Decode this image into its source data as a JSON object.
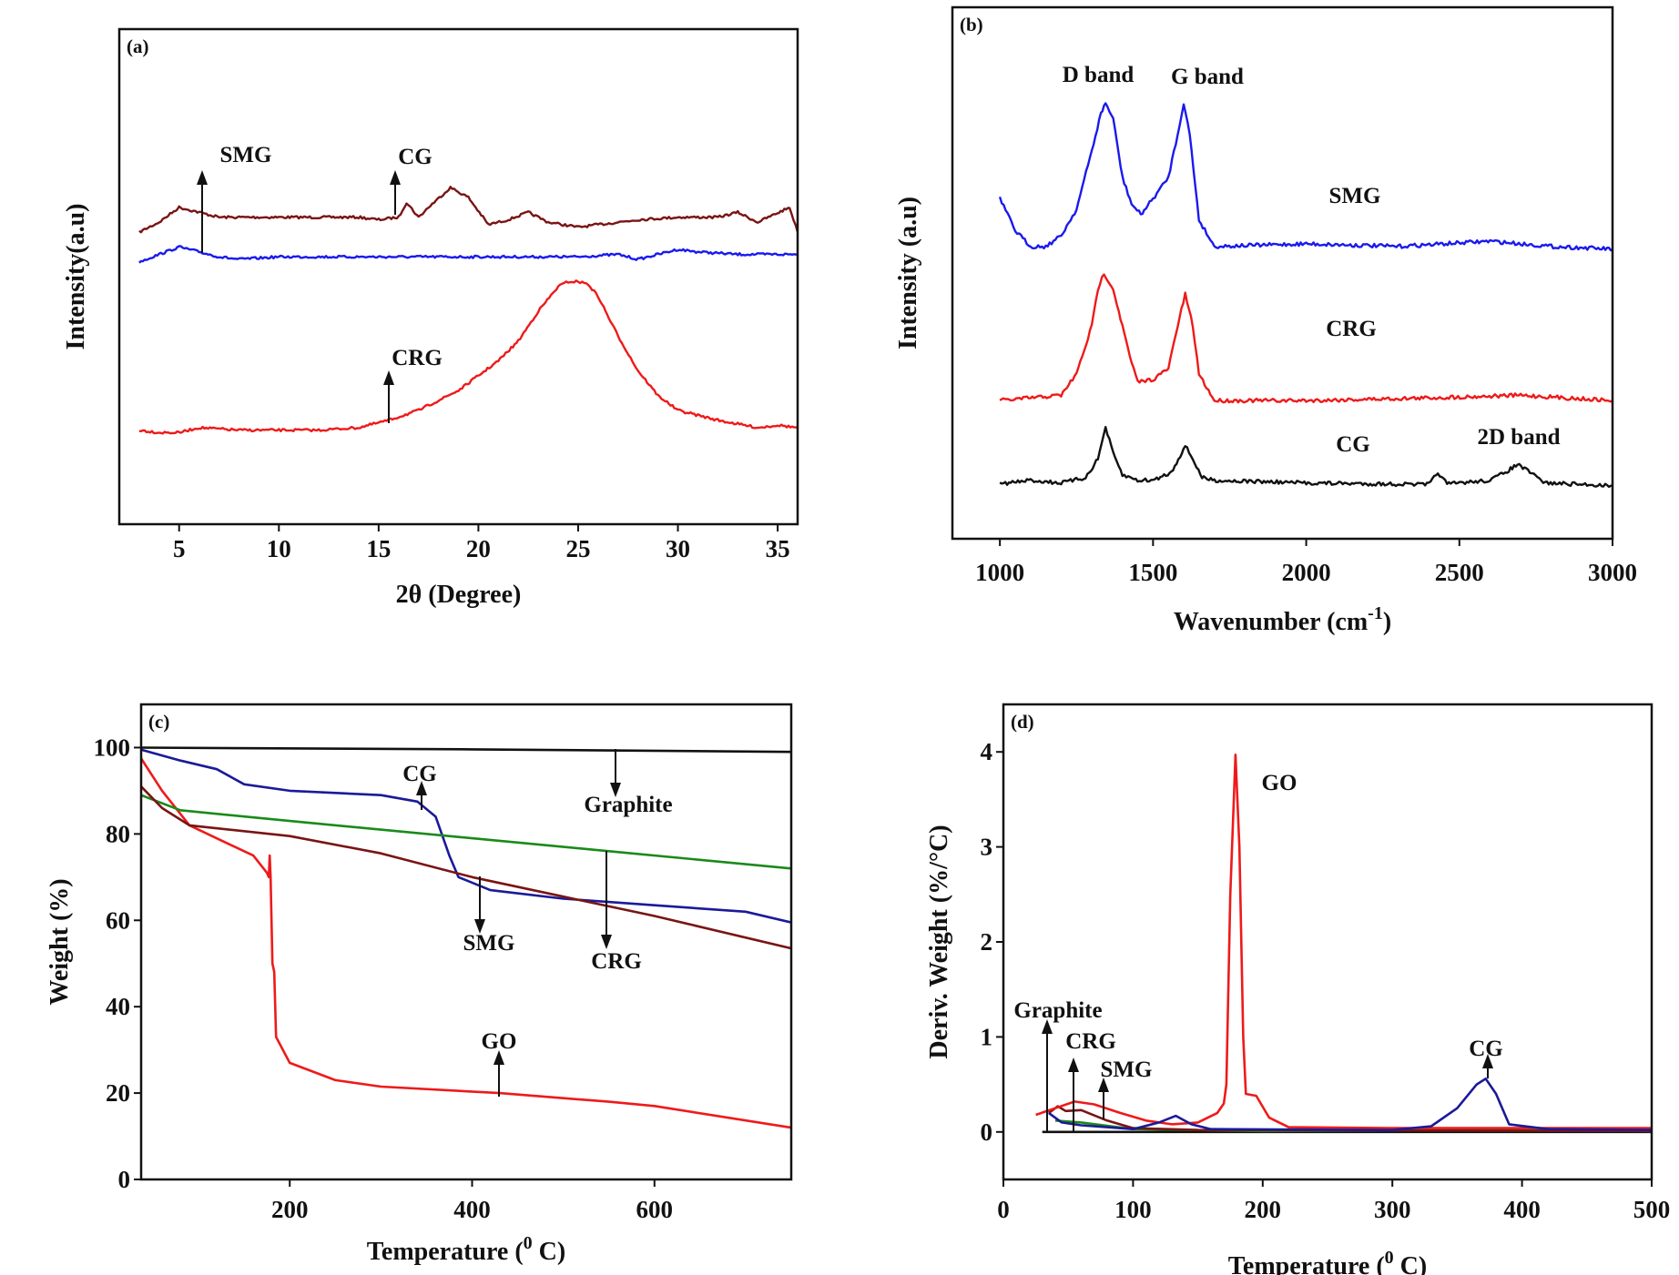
{
  "chart_data": [
    {
      "panel": "(a)",
      "type": "line",
      "xlabel": "2θ (Degree)",
      "ylabel": "Intensity(a.u)",
      "xlim": [
        2,
        36
      ],
      "ylim": [
        0,
        100
      ],
      "xticks": [
        5,
        10,
        15,
        20,
        25,
        30,
        35
      ],
      "yticks": [],
      "grid": false,
      "annotations": [
        "SMG",
        "CG",
        "CRG"
      ],
      "series": [
        {
          "name": "CG",
          "color": "#7a1414",
          "x": [
            3,
            4,
            5,
            6,
            7,
            8,
            10,
            12,
            14,
            15,
            16,
            16.4,
            17,
            17.5,
            18.6,
            19.5,
            20.5,
            21.5,
            22.5,
            23.5,
            25,
            27,
            28,
            30,
            32,
            33,
            34,
            35.6,
            36
          ],
          "y": [
            59,
            61,
            64,
            63,
            62,
            62,
            62,
            62,
            62,
            61.5,
            62,
            65,
            62,
            64,
            68,
            66,
            60.5,
            61.5,
            63,
            61,
            60,
            61,
            61.5,
            62,
            62,
            63,
            61,
            64,
            59
          ]
        },
        {
          "name": "SMG",
          "color": "#1a1aee",
          "x": [
            3,
            4,
            5,
            6,
            7,
            8,
            10,
            12,
            15,
            20,
            25,
            27,
            28,
            30,
            31,
            33,
            36
          ],
          "y": [
            53,
            54.5,
            56,
            55,
            54,
            53.5,
            54,
            54,
            54,
            54,
            54,
            54.5,
            53.5,
            55.5,
            55,
            54.5,
            54.5
          ]
        },
        {
          "name": "CRG",
          "color": "#ee1a1a",
          "x": [
            3,
            4,
            5,
            6,
            8,
            10,
            12,
            14,
            15.5,
            17,
            18,
            19,
            20,
            21,
            22,
            23,
            24,
            24.5,
            25,
            25.5,
            26,
            27,
            28,
            29,
            30,
            31,
            32,
            34,
            35,
            36
          ],
          "y": [
            19,
            18.5,
            18.5,
            19.5,
            19,
            19,
            19,
            19.5,
            21,
            23,
            25,
            27,
            30,
            33,
            37,
            43,
            48,
            49,
            49,
            48.5,
            46,
            38,
            31,
            26,
            23,
            22,
            21,
            19.5,
            20,
            19.5
          ]
        }
      ]
    },
    {
      "panel": "(b)",
      "type": "line",
      "xlabel": "Wavenumber (cm-1)",
      "xlabel_parts": [
        "Wavenumber (cm",
        "-1",
        ")"
      ],
      "ylabel": "Intensity (a.u)",
      "xlim": [
        845,
        3000
      ],
      "ylim": [
        0,
        100
      ],
      "xticks": [
        1000,
        1500,
        2000,
        2500,
        3000
      ],
      "yticks": [],
      "grid": false,
      "annotations": [
        "D band",
        "G band",
        "SMG",
        "CRG",
        "CG",
        "2D band"
      ],
      "series": [
        {
          "name": "SMG",
          "color": "#1a1aee",
          "x": [
            1000,
            1050,
            1100,
            1150,
            1200,
            1250,
            1300,
            1330,
            1345,
            1370,
            1400,
            1430,
            1460,
            1500,
            1550,
            1580,
            1600,
            1620,
            1650,
            1700,
            2000,
            2300,
            2600,
            2800,
            3000
          ],
          "y": [
            64,
            58,
            55,
            55,
            57,
            62,
            73,
            80,
            82,
            79,
            68,
            63,
            61,
            64,
            68,
            76,
            82,
            76,
            60,
            55,
            55.5,
            55,
            56,
            55,
            54.5
          ]
        },
        {
          "name": "CRG",
          "color": "#ee1a1a",
          "x": [
            1000,
            1100,
            1200,
            1250,
            1300,
            1320,
            1340,
            1370,
            1400,
            1430,
            1450,
            1500,
            1550,
            1580,
            1605,
            1630,
            1650,
            1700,
            2000,
            2400,
            2700,
            3000
          ],
          "y": [
            26,
            26.5,
            27,
            31,
            40,
            47,
            50,
            47,
            40,
            33,
            29.5,
            30,
            32,
            40,
            46,
            40,
            31,
            26,
            26,
            26.5,
            27,
            26
          ]
        },
        {
          "name": "CG",
          "color": "#111111",
          "x": [
            1000,
            1100,
            1200,
            1280,
            1320,
            1345,
            1370,
            1400,
            1450,
            1500,
            1560,
            1605,
            1630,
            1660,
            1700,
            2000,
            2400,
            2430,
            2460,
            2600,
            2650,
            2690,
            2730,
            2780,
            3000
          ],
          "y": [
            10.3,
            11,
            10.5,
            11.5,
            15,
            21,
            16,
            12,
            11,
            11,
            12.5,
            17.5,
            15,
            11.5,
            11,
            10.5,
            10.2,
            12.5,
            10.3,
            11,
            12.5,
            14,
            12.5,
            10.5,
            10
          ]
        }
      ]
    },
    {
      "panel": "(c)",
      "type": "line",
      "xlabel": "Temperature (0 C)",
      "xlabel_parts": [
        "Temperature (",
        "0",
        " C)"
      ],
      "ylabel": "Weight (%)",
      "xlim": [
        37,
        750
      ],
      "ylim": [
        0,
        110
      ],
      "xticks": [
        200,
        400,
        600
      ],
      "yticks": [
        0,
        20,
        40,
        60,
        80,
        100
      ],
      "grid": false,
      "annotations": [
        "CG",
        "Graphite",
        "SMG",
        "CRG",
        "GO"
      ],
      "series": [
        {
          "name": "Graphite",
          "color": "#111111",
          "x": [
            37,
            400,
            750
          ],
          "y": [
            100,
            99.6,
            99
          ]
        },
        {
          "name": "CG",
          "color": "#1a1a99",
          "x": [
            37,
            80,
            120,
            150,
            200,
            300,
            340,
            360,
            375,
            385,
            420,
            500,
            600,
            700,
            750
          ],
          "y": [
            99.5,
            97,
            95,
            91.5,
            90,
            89,
            87.5,
            84,
            75,
            70,
            67,
            65,
            63.5,
            62,
            59.5
          ]
        },
        {
          "name": "GO",
          "color": "#ee1a1a",
          "x": [
            37,
            60,
            90,
            130,
            160,
            175,
            177,
            178,
            179,
            181,
            183,
            185,
            200,
            250,
            300,
            430,
            550,
            600,
            750
          ],
          "y": [
            97.5,
            90,
            82,
            78,
            75,
            71,
            70,
            75,
            70,
            50,
            48,
            33,
            27,
            23,
            21.5,
            20,
            18,
            17,
            12
          ]
        },
        {
          "name": "CRG",
          "color": "#1a8a1a",
          "x": [
            37,
            80,
            200,
            400,
            550,
            750
          ],
          "y": [
            89,
            85.5,
            83,
            79,
            76,
            72
          ]
        },
        {
          "name": "SMG",
          "color": "#7a1414",
          "x": [
            37,
            60,
            90,
            200,
            300,
            400,
            500,
            600,
            750
          ],
          "y": [
            91,
            86,
            82,
            79.5,
            75.5,
            70,
            65.5,
            61,
            53.5
          ]
        }
      ]
    },
    {
      "panel": "(d)",
      "type": "line",
      "xlabel": "Temperature (0 C)",
      "xlabel_parts": [
        "Temperature (",
        "0",
        " C)"
      ],
      "ylabel": "Deriv. Weight (%/°C)",
      "xlim": [
        0,
        500
      ],
      "ylim": [
        -0.5,
        4.5
      ],
      "xticks": [
        0,
        100,
        200,
        300,
        400,
        500
      ],
      "yticks": [
        0,
        1,
        2,
        3,
        4
      ],
      "grid": false,
      "annotations": [
        "GO",
        "Graphite",
        "CRG",
        "SMG",
        "CG"
      ],
      "series": [
        {
          "name": "Graphite",
          "color": "#111111",
          "x": [
            30,
            500
          ],
          "y": [
            0,
            0
          ]
        },
        {
          "name": "SMG",
          "color": "#1a8a1a",
          "x": [
            40,
            60,
            100,
            200,
            380,
            500
          ],
          "y": [
            0.12,
            0.1,
            0.03,
            0.01,
            0.02,
            0.01
          ]
        },
        {
          "name": "CRG",
          "color": "#7a1414",
          "x": [
            35,
            42,
            48,
            60,
            80,
            100,
            150,
            500
          ],
          "y": [
            0.2,
            0.27,
            0.22,
            0.23,
            0.12,
            0.04,
            0.02,
            0.01
          ]
        },
        {
          "name": "GO",
          "color": "#ee1a1a",
          "x": [
            25,
            40,
            55,
            70,
            90,
            110,
            130,
            150,
            165,
            170,
            172,
            175,
            179,
            182,
            185,
            187,
            195,
            205,
            220,
            300,
            500
          ],
          "y": [
            0.18,
            0.25,
            0.32,
            0.29,
            0.2,
            0.12,
            0.08,
            0.1,
            0.2,
            0.3,
            0.5,
            2.5,
            3.97,
            3.0,
            1.0,
            0.4,
            0.38,
            0.15,
            0.05,
            0.04,
            0.04
          ]
        },
        {
          "name": "CG",
          "color": "#1a1a99",
          "x": [
            35,
            45,
            60,
            100,
            120,
            133,
            145,
            160,
            300,
            330,
            350,
            365,
            372,
            380,
            390,
            420,
            500
          ],
          "y": [
            0.2,
            0.1,
            0.07,
            0.03,
            0.1,
            0.17,
            0.08,
            0.03,
            0.02,
            0.06,
            0.25,
            0.5,
            0.56,
            0.4,
            0.08,
            0.03,
            0.02
          ]
        }
      ]
    }
  ]
}
